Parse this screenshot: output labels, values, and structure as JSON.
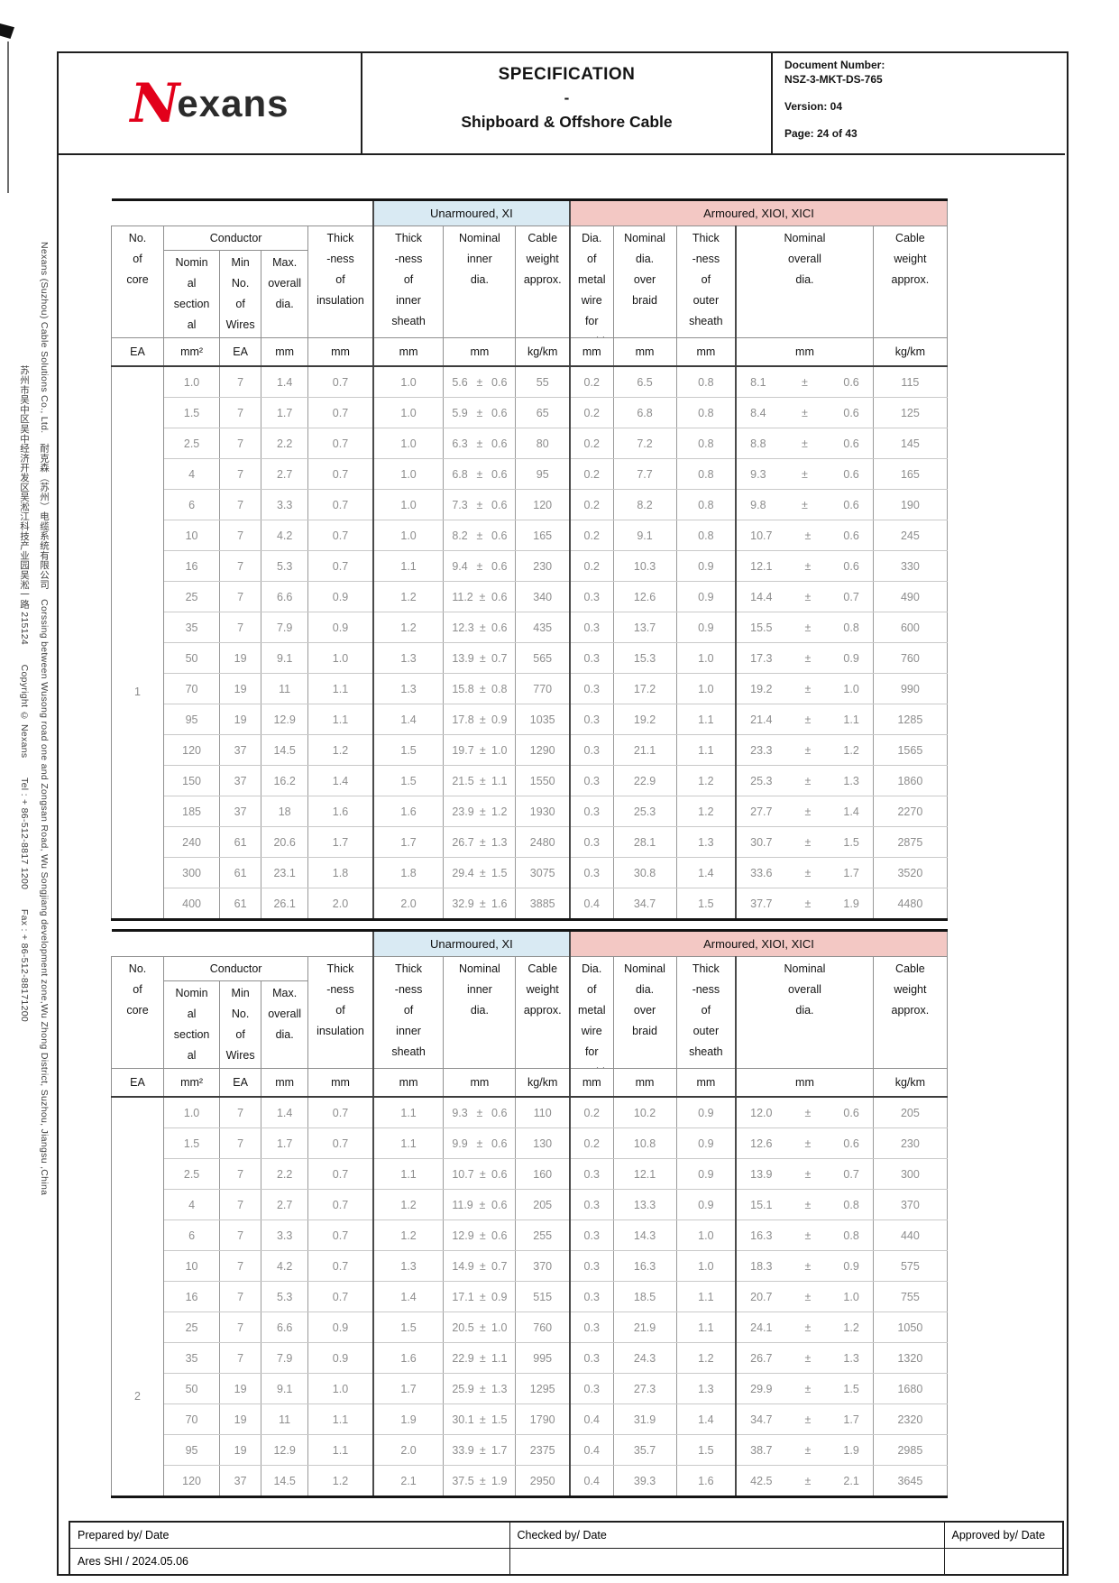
{
  "header": {
    "brand_initial": "N",
    "brand_rest": "exans",
    "title": "SPECIFICATION",
    "title_separator": "-",
    "subtitle": "Shipboard & Offshore Cable",
    "doc_number_label": "Document Number:",
    "doc_number": "NSZ-3-MKT-DS-765",
    "version": "Version: 04",
    "page": "Page: 24 of 43"
  },
  "sidebar": {
    "outer": "Nexans (Suzhou) Cable Solutions Co., Ltd.　耐克森（苏州）电缆系统有限公司　Corssing between Wusong road one and Zongsan Road, Wu Songjiang development zone,Wu Zhong District, Suzhou, Jiangsu ,China",
    "inner": "苏州市吴中区吴中经济开发区吴淞江科技产业园吴淞一路 215124　　Copyright © Nexans　　Tel : + 86-512-8817 1200　　Fax : + 86-512-88171200"
  },
  "table_template": {
    "group_unarmoured": "Unarmoured, XI",
    "group_armoured": "Armoured, XIOI, XICI",
    "conductor_group": "Conductor",
    "columns": [
      {
        "id": "no-of-core",
        "label": "No.\nof\ncore",
        "unit": "EA"
      },
      {
        "id": "nominal-sectional-area",
        "label": "Nomin\nal\nsection\nal\narea",
        "unit": "mm²"
      },
      {
        "id": "min-no-of-wires",
        "label": "Min\nNo.\nof\nWires",
        "unit": "EA"
      },
      {
        "id": "max-overall-dia",
        "label": "Max.\noverall\ndia.",
        "unit": "mm"
      },
      {
        "id": "insulation-thickness",
        "label": "Thick\n-ness\nof\ninsulation",
        "unit": "mm"
      },
      {
        "id": "inner-sheath-thickness",
        "label": "Thick\n-ness\nof\ninner\nsheath",
        "unit": "mm"
      },
      {
        "id": "nominal-inner-dia",
        "label": "Nominal\ninner\ndia.",
        "unit": "mm"
      },
      {
        "id": "cable-weight-unarmoured",
        "label": "Cable\nweight\napprox.",
        "unit": "kg/km"
      },
      {
        "id": "metal-wire-dia",
        "label": "Dia.\nof\nmetal\nwire\nfor\nBraid",
        "unit": "mm"
      },
      {
        "id": "nominal-dia-over-braid",
        "label": "Nominal\ndia.\nover\nbraid",
        "unit": "mm"
      },
      {
        "id": "outer-sheath-thickness",
        "label": "Thick\n-ness\nof\nouter\nsheath",
        "unit": "mm"
      },
      {
        "id": "nominal-overall-dia",
        "label": "Nominal\noverall\ndia.",
        "unit": "mm"
      },
      {
        "id": "cable-weight-armoured",
        "label": "Cable\nweight\napprox.",
        "unit": "kg/km"
      }
    ]
  },
  "tables": [
    {
      "core": "1",
      "rows": [
        [
          "1.0",
          "7",
          "1.4",
          "0.7",
          "1.0",
          "5.6 ± 0.6",
          "55",
          "0.2",
          "6.5",
          "0.8",
          "8.1 ± 0.6",
          "115"
        ],
        [
          "1.5",
          "7",
          "1.7",
          "0.7",
          "1.0",
          "5.9 ± 0.6",
          "65",
          "0.2",
          "6.8",
          "0.8",
          "8.4 ± 0.6",
          "125"
        ],
        [
          "2.5",
          "7",
          "2.2",
          "0.7",
          "1.0",
          "6.3 ± 0.6",
          "80",
          "0.2",
          "7.2",
          "0.8",
          "8.8 ± 0.6",
          "145"
        ],
        [
          "4",
          "7",
          "2.7",
          "0.7",
          "1.0",
          "6.8 ± 0.6",
          "95",
          "0.2",
          "7.7",
          "0.8",
          "9.3 ± 0.6",
          "165"
        ],
        [
          "6",
          "7",
          "3.3",
          "0.7",
          "1.0",
          "7.3 ± 0.6",
          "120",
          "0.2",
          "8.2",
          "0.8",
          "9.8 ± 0.6",
          "190"
        ],
        [
          "10",
          "7",
          "4.2",
          "0.7",
          "1.0",
          "8.2 ± 0.6",
          "165",
          "0.2",
          "9.1",
          "0.8",
          "10.7 ± 0.6",
          "245"
        ],
        [
          "16",
          "7",
          "5.3",
          "0.7",
          "1.1",
          "9.4 ± 0.6",
          "230",
          "0.2",
          "10.3",
          "0.9",
          "12.1 ± 0.6",
          "330"
        ],
        [
          "25",
          "7",
          "6.6",
          "0.9",
          "1.2",
          "11.2 ± 0.6",
          "340",
          "0.3",
          "12.6",
          "0.9",
          "14.4 ± 0.7",
          "490"
        ],
        [
          "35",
          "7",
          "7.9",
          "0.9",
          "1.2",
          "12.3 ± 0.6",
          "435",
          "0.3",
          "13.7",
          "0.9",
          "15.5 ± 0.8",
          "600"
        ],
        [
          "50",
          "19",
          "9.1",
          "1.0",
          "1.3",
          "13.9 ± 0.7",
          "565",
          "0.3",
          "15.3",
          "1.0",
          "17.3 ± 0.9",
          "760"
        ],
        [
          "70",
          "19",
          "11",
          "1.1",
          "1.3",
          "15.8 ± 0.8",
          "770",
          "0.3",
          "17.2",
          "1.0",
          "19.2 ± 1.0",
          "990"
        ],
        [
          "95",
          "19",
          "12.9",
          "1.1",
          "1.4",
          "17.8 ± 0.9",
          "1035",
          "0.3",
          "19.2",
          "1.1",
          "21.4 ± 1.1",
          "1285"
        ],
        [
          "120",
          "37",
          "14.5",
          "1.2",
          "1.5",
          "19.7 ± 1.0",
          "1290",
          "0.3",
          "21.1",
          "1.1",
          "23.3 ± 1.2",
          "1565"
        ],
        [
          "150",
          "37",
          "16.2",
          "1.4",
          "1.5",
          "21.5 ± 1.1",
          "1550",
          "0.3",
          "22.9",
          "1.2",
          "25.3 ± 1.3",
          "1860"
        ],
        [
          "185",
          "37",
          "18",
          "1.6",
          "1.6",
          "23.9 ± 1.2",
          "1930",
          "0.3",
          "25.3",
          "1.2",
          "27.7 ± 1.4",
          "2270"
        ],
        [
          "240",
          "61",
          "20.6",
          "1.7",
          "1.7",
          "26.7 ± 1.3",
          "2480",
          "0.3",
          "28.1",
          "1.3",
          "30.7 ± 1.5",
          "2875"
        ],
        [
          "300",
          "61",
          "23.1",
          "1.8",
          "1.8",
          "29.4 ± 1.5",
          "3075",
          "0.3",
          "30.8",
          "1.4",
          "33.6 ± 1.7",
          "3520"
        ],
        [
          "400",
          "61",
          "26.1",
          "2.0",
          "2.0",
          "32.9 ± 1.6",
          "3885",
          "0.4",
          "34.7",
          "1.5",
          "37.7 ± 1.9",
          "4480"
        ]
      ]
    },
    {
      "core": "2",
      "rows": [
        [
          "1.0",
          "7",
          "1.4",
          "0.7",
          "1.1",
          "9.3 ± 0.6",
          "110",
          "0.2",
          "10.2",
          "0.9",
          "12.0 ± 0.6",
          "205"
        ],
        [
          "1.5",
          "7",
          "1.7",
          "0.7",
          "1.1",
          "9.9 ± 0.6",
          "130",
          "0.2",
          "10.8",
          "0.9",
          "12.6 ± 0.6",
          "230"
        ],
        [
          "2.5",
          "7",
          "2.2",
          "0.7",
          "1.1",
          "10.7 ± 0.6",
          "160",
          "0.3",
          "12.1",
          "0.9",
          "13.9 ± 0.7",
          "300"
        ],
        [
          "4",
          "7",
          "2.7",
          "0.7",
          "1.2",
          "11.9 ± 0.6",
          "205",
          "0.3",
          "13.3",
          "0.9",
          "15.1 ± 0.8",
          "370"
        ],
        [
          "6",
          "7",
          "3.3",
          "0.7",
          "1.2",
          "12.9 ± 0.6",
          "255",
          "0.3",
          "14.3",
          "1.0",
          "16.3 ± 0.8",
          "440"
        ],
        [
          "10",
          "7",
          "4.2",
          "0.7",
          "1.3",
          "14.9 ± 0.7",
          "370",
          "0.3",
          "16.3",
          "1.0",
          "18.3 ± 0.9",
          "575"
        ],
        [
          "16",
          "7",
          "5.3",
          "0.7",
          "1.4",
          "17.1 ± 0.9",
          "515",
          "0.3",
          "18.5",
          "1.1",
          "20.7 ± 1.0",
          "755"
        ],
        [
          "25",
          "7",
          "6.6",
          "0.9",
          "1.5",
          "20.5 ± 1.0",
          "760",
          "0.3",
          "21.9",
          "1.1",
          "24.1 ± 1.2",
          "1050"
        ],
        [
          "35",
          "7",
          "7.9",
          "0.9",
          "1.6",
          "22.9 ± 1.1",
          "995",
          "0.3",
          "24.3",
          "1.2",
          "26.7 ± 1.3",
          "1320"
        ],
        [
          "50",
          "19",
          "9.1",
          "1.0",
          "1.7",
          "25.9 ± 1.3",
          "1295",
          "0.3",
          "27.3",
          "1.3",
          "29.9 ± 1.5",
          "1680"
        ],
        [
          "70",
          "19",
          "11",
          "1.1",
          "1.9",
          "30.1 ± 1.5",
          "1790",
          "0.4",
          "31.9",
          "1.4",
          "34.7 ± 1.7",
          "2320"
        ],
        [
          "95",
          "19",
          "12.9",
          "1.1",
          "2.0",
          "33.9 ± 1.7",
          "2375",
          "0.4",
          "35.7",
          "1.5",
          "38.7 ± 1.9",
          "2985"
        ],
        [
          "120",
          "37",
          "14.5",
          "1.2",
          "2.1",
          "37.5 ± 1.9",
          "2950",
          "0.4",
          "39.3",
          "1.6",
          "42.5 ± 2.1",
          "3645"
        ]
      ]
    }
  ],
  "footer": {
    "prepared_label": "Prepared by/ Date",
    "checked_label": "Checked by/ Date",
    "approved_label": "Approved by/ Date",
    "prepared_value": "Ares SHI / 2024.05.06",
    "checked_value": "",
    "approved_value": ""
  },
  "colors": {
    "unarmoured_band_bg": "#d9eaf3",
    "armoured_band_bg": "#f3c8c4",
    "brand_red": "#e2001a",
    "data_text": "#8d8d8d"
  }
}
